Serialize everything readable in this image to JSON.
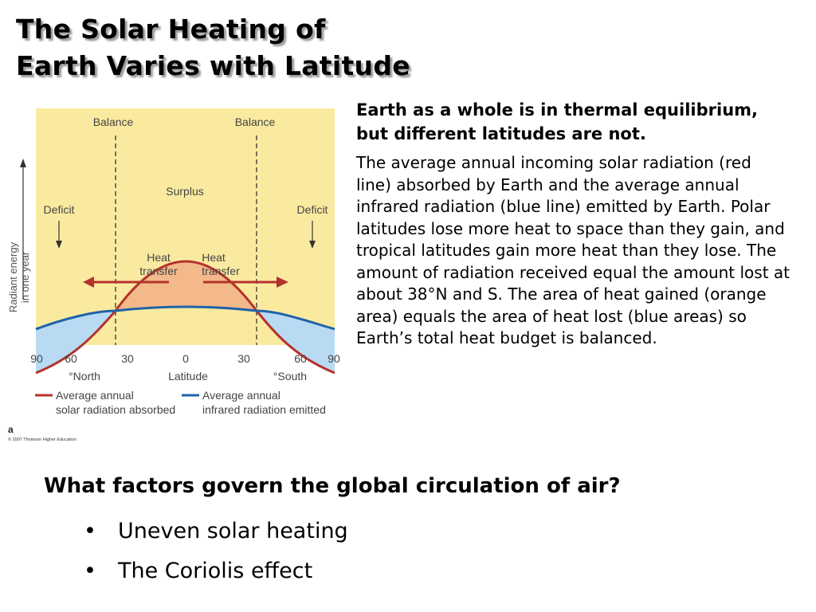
{
  "slide": {
    "title_line1": "The Solar Heating of",
    "title_line2": "Earth Varies with Latitude",
    "lead": "Earth as a whole is in thermal equilibrium, but different latitudes are not.",
    "body": "The average annual incoming solar radiation (red line) absorbed by Earth and the average annual infrared radiation (blue line) emitted by Earth. Polar latitudes lose more heat to space than they gain, and tropical latitudes gain more heat than they lose. The amount of radiation received equal the amount lost at about 38°N and S. The area of heat gained (orange area) equals the area of heat lost (blue areas) so Earth’s total heat budget is balanced.",
    "question": "What factors govern the global circulation of air?",
    "bullets": [
      {
        "marker": "•",
        "text": "Uneven solar heating"
      },
      {
        "marker": "•",
        "text": "The Coriolis effect"
      }
    ]
  },
  "figure": {
    "labels": {
      "balance_left": "Balance",
      "balance_right": "Balance",
      "surplus": "Surplus",
      "deficit_left": "Deficit",
      "deficit_right": "Deficit",
      "heat_transfer_left_1": "Heat",
      "heat_transfer_left_2": "transfer",
      "heat_transfer_right_1": "Heat",
      "heat_transfer_right_2": "transfer",
      "y_axis_1": "Radiant energy",
      "y_axis_2": "in one year",
      "x_axis_title": "Latitude",
      "x_left_hemisphere": "°North",
      "x_right_hemisphere": "°South",
      "legend_red_1": "Average annual",
      "legend_red_2": "solar radiation absorbed",
      "legend_blue_1": "Average annual",
      "legend_blue_2": "infrared radiation emitted",
      "panel_letter": "a",
      "copyright": "© 2007 Thomson Higher Education"
    },
    "x_ticks": [
      "90",
      "60",
      "30",
      "0",
      "30",
      "60",
      "90"
    ],
    "colors": {
      "background": "#FAEAA0",
      "solar_line": "#B5322B",
      "infrared_line": "#1F63A8",
      "surplus_fill": "#F3B98A",
      "deficit_fill": "#B9DAF3",
      "arrow": "#B5322B"
    }
  }
}
